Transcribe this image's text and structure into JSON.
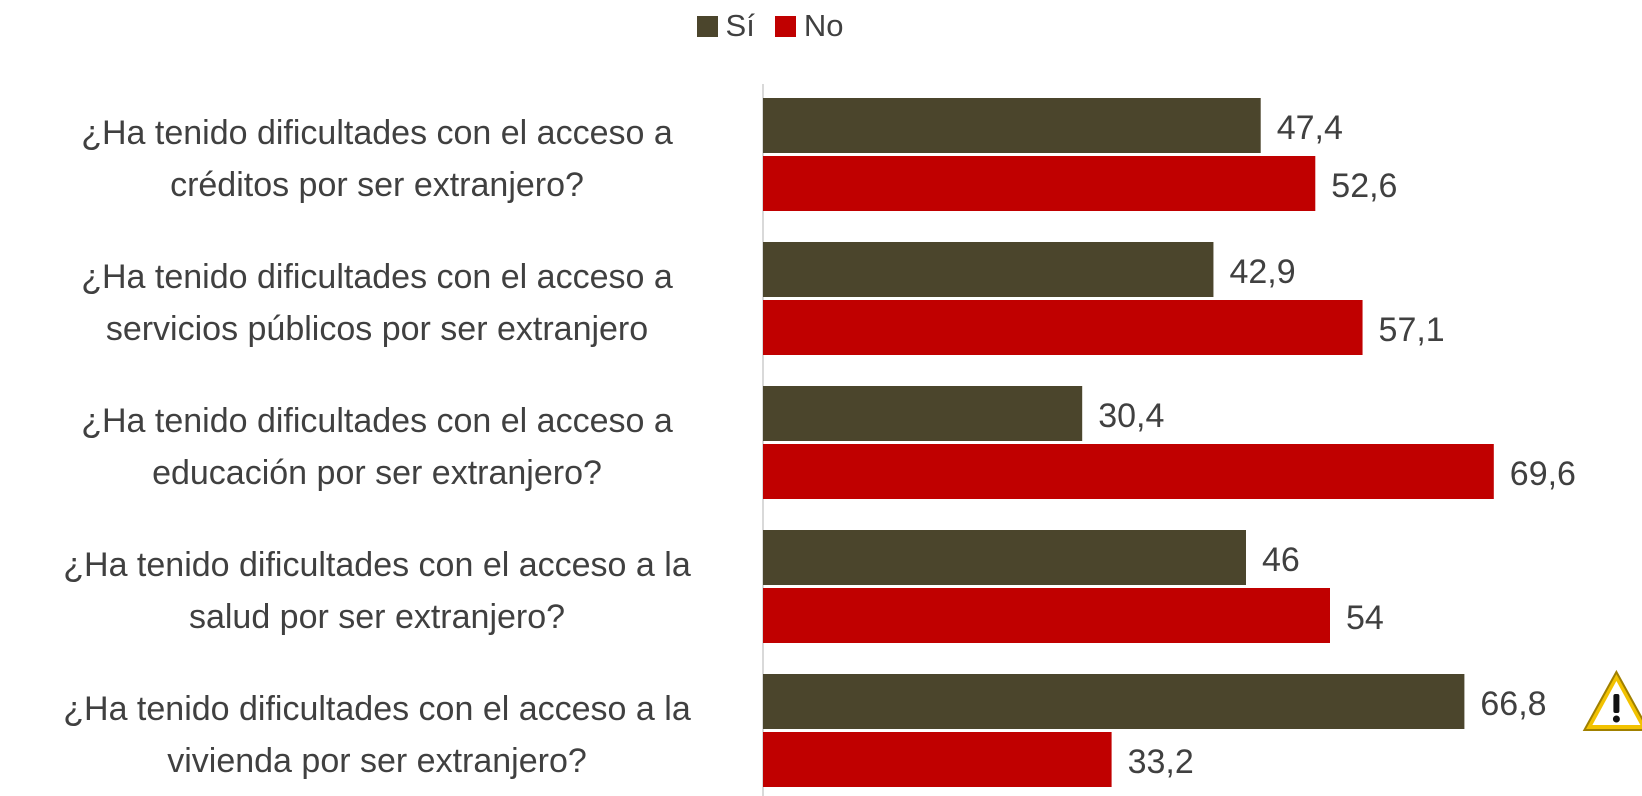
{
  "chart_data": {
    "type": "bar",
    "orientation": "horizontal",
    "categories": [
      [
        "¿Ha tenido dificultades con el acceso a",
        "créditos por ser extranjero?"
      ],
      [
        "¿Ha tenido dificultades con el acceso a",
        "servicios públicos por ser extranjero"
      ],
      [
        "¿Ha tenido dificultades con el acceso a",
        "educación por ser extranjero?"
      ],
      [
        "¿Ha tenido dificultades con el acceso a la",
        "salud por ser extranjero?"
      ],
      [
        "¿Ha tenido dificultades con el acceso a la",
        "vivienda por ser extranjero?"
      ]
    ],
    "series": [
      {
        "name": "Sí",
        "color": "#4B452C",
        "values": [
          47.4,
          42.9,
          30.4,
          46,
          66.8
        ],
        "labels": [
          "47,4",
          "42,9",
          "30,4",
          "46",
          "66,8"
        ]
      },
      {
        "name": "No",
        "color": "#C00000",
        "values": [
          52.6,
          57.1,
          69.6,
          54,
          33.2
        ],
        "labels": [
          "52,6",
          "57,1",
          "69,6",
          "54",
          "33,2"
        ]
      }
    ],
    "xlim": [
      0,
      70
    ],
    "grid": false,
    "legend": "top-center",
    "annotation_icon": "warning-icon"
  }
}
